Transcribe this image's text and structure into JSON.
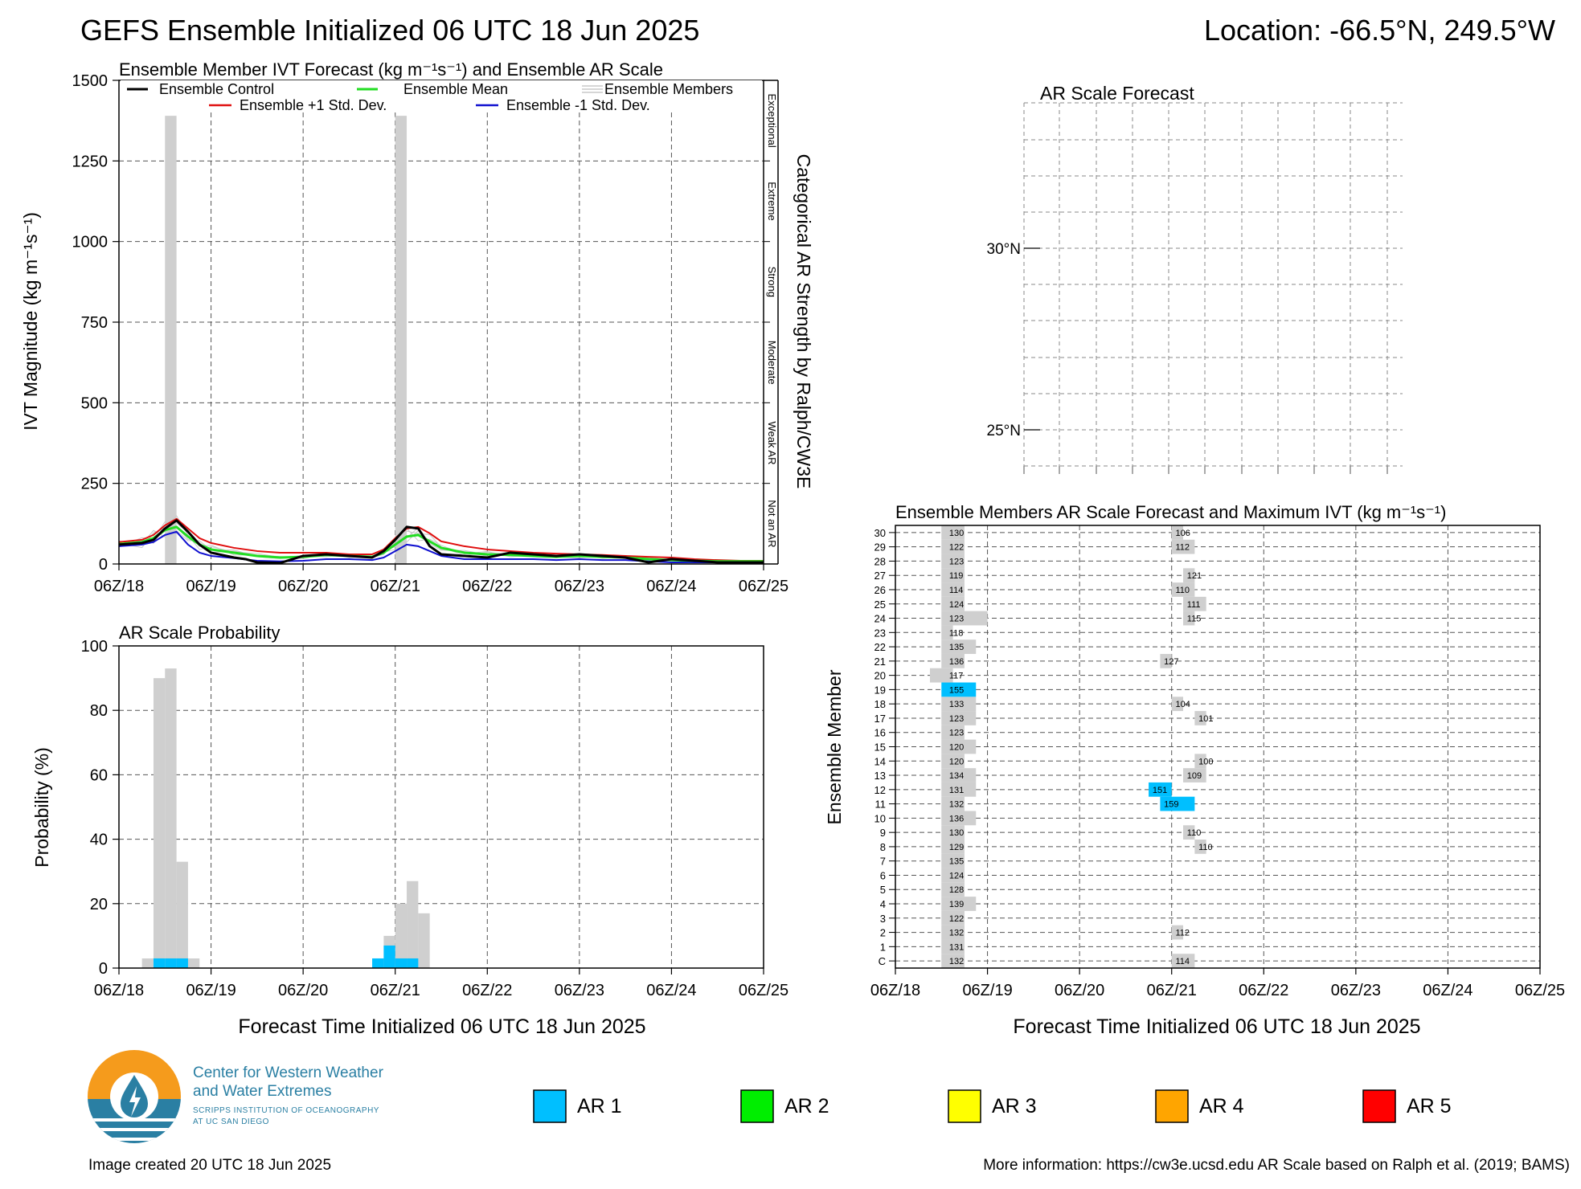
{
  "header": {
    "title": "GEFS Ensemble Initialized 06 UTC 18 Jun 2025",
    "location": "Location: -66.5°N, 249.5°W"
  },
  "ivt_panel": {
    "title": "Ensemble Member IVT Forecast (kg m⁻¹s⁻¹) and Ensemble AR Scale",
    "ylabel": "IVT Magnitude (kg m⁻¹s⁻¹)",
    "right_label": "Categorical AR Strength by Ralph/CW3E",
    "categories": [
      "Exceptional",
      "Extreme",
      "Strong",
      "Moderate",
      "Weak AR",
      "Not an AR"
    ],
    "legend": {
      "control": "Ensemble Control",
      "mean": "Ensemble Mean",
      "members": "Ensemble Members",
      "plus_sd": "Ensemble +1 Std. Dev.",
      "minus_sd": "Ensemble -1 Std. Dev."
    },
    "colors": {
      "control": "#000000",
      "mean": "#22dd22",
      "members": "#c8c8c8",
      "plus_sd": "#e01010",
      "minus_sd": "#1010d0",
      "shade": "#cfcfcf"
    }
  },
  "prob_panel": {
    "title": "AR Scale Probability",
    "ylabel": "Probability (%)",
    "xlabel": "Forecast Time Initialized 06 UTC 18 Jun 2025"
  },
  "map_panel": {
    "title": "AR Scale Forecast",
    "lat_labels": [
      "30°N",
      "25°N"
    ]
  },
  "members_panel": {
    "title": "Ensemble Members AR Scale Forecast and Maximum IVT (kg m⁻¹s⁻¹)",
    "ylabel": "Ensemble Member",
    "xlabel": "Forecast Time Initialized 06 UTC 18 Jun 2025"
  },
  "legend_scale": [
    {
      "label": "AR 1",
      "color": "#00bfff"
    },
    {
      "label": "AR 2",
      "color": "#00ee00"
    },
    {
      "label": "AR 3",
      "color": "#ffff00"
    },
    {
      "label": "AR 4",
      "color": "#ffa500"
    },
    {
      "label": "AR 5",
      "color": "#ff0000"
    }
  ],
  "logo": {
    "line1": "Center for Western Weather",
    "line2": "and Water Extremes",
    "line3": "SCRIPPS INSTITUTION OF OCEANOGRAPHY",
    "line4": "AT UC SAN DIEGO"
  },
  "footer": {
    "created": "Image created 20 UTC 18 Jun 2025",
    "info": "More information: https://cw3e.ucsd.edu AR Scale based on Ralph et al. (2019; BAMS)"
  },
  "chart_data": [
    {
      "type": "line",
      "title": "Ensemble Member IVT Forecast (kg m⁻¹s⁻¹) and Ensemble AR Scale",
      "xlabel": "",
      "ylabel": "IVT Magnitude (kg m⁻¹s⁻¹)",
      "ylim": [
        0,
        1500
      ],
      "yticks": [
        0,
        250,
        500,
        750,
        1000,
        1250,
        1500
      ],
      "xlim_hours": [
        0,
        168
      ],
      "xticks": [
        "06Z/18",
        "06Z/19",
        "06Z/20",
        "06Z/21",
        "06Z/22",
        "06Z/23",
        "06Z/24",
        "06Z/25"
      ],
      "grid": true,
      "ar_category_shading_hours": [
        [
          12,
          15
        ],
        [
          72,
          75
        ]
      ],
      "ar_category_shading_top": 1390,
      "series": [
        {
          "name": "Ensemble Control",
          "x_hours": [
            0,
            6,
            9,
            12,
            15,
            18,
            21,
            24,
            30,
            33,
            36,
            42,
            48,
            54,
            60,
            66,
            69,
            72,
            75,
            78,
            81,
            84,
            90,
            96,
            102,
            108,
            114,
            120,
            126,
            132,
            138,
            144,
            150,
            156,
            162,
            168
          ],
          "values": [
            60,
            65,
            75,
            110,
            135,
            100,
            60,
            35,
            20,
            15,
            5,
            3,
            25,
            30,
            25,
            20,
            40,
            75,
            115,
            110,
            55,
            30,
            25,
            20,
            35,
            30,
            25,
            30,
            25,
            20,
            5,
            15,
            10,
            5,
            5,
            5
          ]
        },
        {
          "name": "Ensemble Mean",
          "x_hours": [
            0,
            6,
            9,
            12,
            15,
            18,
            21,
            24,
            30,
            36,
            42,
            48,
            54,
            60,
            66,
            69,
            72,
            75,
            78,
            81,
            84,
            90,
            96,
            102,
            108,
            114,
            120,
            126,
            132,
            138,
            144,
            150,
            156,
            162,
            168
          ],
          "values": [
            62,
            68,
            80,
            105,
            115,
            85,
            60,
            45,
            35,
            25,
            20,
            22,
            28,
            25,
            22,
            35,
            60,
            85,
            90,
            70,
            50,
            35,
            30,
            28,
            25,
            22,
            25,
            22,
            20,
            15,
            12,
            10,
            8,
            8,
            8
          ]
        },
        {
          "name": "Ensemble +1 Std. Dev.",
          "x_hours": [
            0,
            6,
            9,
            12,
            15,
            18,
            21,
            24,
            30,
            36,
            42,
            48,
            54,
            60,
            66,
            69,
            72,
            75,
            78,
            81,
            84,
            90,
            96,
            102,
            108,
            114,
            120,
            126,
            132,
            138,
            144,
            150,
            156,
            162,
            168
          ],
          "values": [
            68,
            75,
            90,
            120,
            140,
            110,
            80,
            65,
            50,
            40,
            35,
            35,
            35,
            30,
            30,
            45,
            80,
            110,
            115,
            95,
            70,
            55,
            45,
            40,
            35,
            32,
            30,
            28,
            25,
            22,
            20,
            15,
            12,
            10,
            10
          ]
        },
        {
          "name": "Ensemble -1 Std. Dev.",
          "x_hours": [
            0,
            6,
            9,
            12,
            15,
            18,
            21,
            24,
            30,
            36,
            42,
            48,
            54,
            60,
            66,
            69,
            72,
            75,
            78,
            81,
            84,
            90,
            96,
            102,
            108,
            114,
            120,
            126,
            132,
            138,
            144,
            150,
            156,
            162,
            168
          ],
          "values": [
            55,
            60,
            68,
            90,
            100,
            60,
            35,
            25,
            18,
            10,
            8,
            10,
            15,
            15,
            12,
            20,
            40,
            60,
            55,
            40,
            25,
            15,
            15,
            15,
            15,
            12,
            15,
            12,
            12,
            8,
            5,
            5,
            5,
            3,
            3
          ]
        }
      ]
    },
    {
      "type": "bar",
      "title": "AR Scale Probability",
      "xlabel": "Forecast Time Initialized 06 UTC 18 Jun 2025",
      "ylabel": "Probability (%)",
      "ylim": [
        0,
        100
      ],
      "yticks": [
        0,
        20,
        40,
        60,
        80,
        100
      ],
      "xticks": [
        "06Z/18",
        "06Z/19",
        "06Z/20",
        "06Z/21",
        "06Z/22",
        "06Z/23",
        "06Z/24",
        "06Z/25"
      ],
      "grid": true,
      "series": [
        {
          "name": "AR Category",
          "x_hours": [
            6,
            9,
            12,
            15,
            18,
            21,
            66,
            69,
            72,
            75,
            78,
            81
          ],
          "values": [
            3,
            90,
            93,
            33,
            3,
            0,
            3,
            10,
            20,
            27,
            17,
            0
          ]
        },
        {
          "name": "AR 1",
          "x_hours": [
            6,
            9,
            12,
            15,
            18,
            66,
            69,
            72,
            75
          ],
          "values": [
            0,
            3,
            3,
            3,
            0,
            3,
            7,
            3,
            3
          ]
        }
      ]
    },
    {
      "type": "heatmap",
      "title": "Ensemble Members AR Scale Forecast and Maximum IVT (kg m⁻¹s⁻¹)",
      "xlabel": "Forecast Time Initialized 06 UTC 18 Jun 2025",
      "ylabel": "Ensemble Member",
      "xticks": [
        "06Z/18",
        "06Z/19",
        "06Z/20",
        "06Z/21",
        "06Z/22",
        "06Z/23",
        "06Z/24",
        "06Z/25"
      ],
      "members": [
        "C",
        "1",
        "2",
        "3",
        "4",
        "5",
        "6",
        "7",
        "8",
        "9",
        "10",
        "11",
        "12",
        "13",
        "14",
        "15",
        "16",
        "17",
        "18",
        "19",
        "20",
        "21",
        "22",
        "23",
        "24",
        "25",
        "26",
        "27",
        "28",
        "29",
        "30"
      ],
      "max_ivt_event1": [
        132,
        131,
        132,
        122,
        139,
        128,
        124,
        135,
        129,
        130,
        136,
        132,
        131,
        134,
        120,
        120,
        123,
        123,
        133,
        155,
        117,
        136,
        135,
        118,
        123,
        124,
        114,
        119,
        123,
        122,
        130
      ],
      "max_ivt_event2": [
        114,
        null,
        112,
        null,
        null,
        null,
        null,
        null,
        110,
        110,
        null,
        159,
        151,
        109,
        100,
        null,
        null,
        101,
        104,
        null,
        null,
        127,
        null,
        null,
        115,
        111,
        110,
        121,
        null,
        112,
        106
      ],
      "ar_cells": [
        {
          "member": "C",
          "start_hours": 12,
          "end_hours": 18,
          "ar": 0
        },
        {
          "member": "1",
          "start_hours": 12,
          "end_hours": 18,
          "ar": 0
        },
        {
          "member": "2",
          "start_hours": 12,
          "end_hours": 18,
          "ar": 0
        },
        {
          "member": "3",
          "start_hours": 12,
          "end_hours": 18,
          "ar": 0
        },
        {
          "member": "4",
          "start_hours": 12,
          "end_hours": 21,
          "ar": 0
        },
        {
          "member": "5",
          "start_hours": 12,
          "end_hours": 18,
          "ar": 0
        },
        {
          "member": "6",
          "start_hours": 12,
          "end_hours": 18,
          "ar": 0
        },
        {
          "member": "7",
          "start_hours": 12,
          "end_hours": 18,
          "ar": 0
        },
        {
          "member": "8",
          "start_hours": 12,
          "end_hours": 18,
          "ar": 0
        },
        {
          "member": "9",
          "start_hours": 12,
          "end_hours": 18,
          "ar": 0
        },
        {
          "member": "10",
          "start_hours": 12,
          "end_hours": 21,
          "ar": 0
        },
        {
          "member": "11",
          "start_hours": 12,
          "end_hours": 18,
          "ar": 0
        },
        {
          "member": "12",
          "start_hours": 12,
          "end_hours": 21,
          "ar": 0
        },
        {
          "member": "13",
          "start_hours": 12,
          "end_hours": 21,
          "ar": 0
        },
        {
          "member": "14",
          "start_hours": 12,
          "end_hours": 18,
          "ar": 0
        },
        {
          "member": "15",
          "start_hours": 12,
          "end_hours": 21,
          "ar": 0
        },
        {
          "member": "16",
          "start_hours": 12,
          "end_hours": 18,
          "ar": 0
        },
        {
          "member": "17",
          "start_hours": 12,
          "end_hours": 21,
          "ar": 0
        },
        {
          "member": "18",
          "start_hours": 12,
          "end_hours": 21,
          "ar": 0
        },
        {
          "member": "19",
          "start_hours": 12,
          "end_hours": 21,
          "ar": 1
        },
        {
          "member": "20",
          "start_hours": 9,
          "end_hours": 15,
          "ar": 0
        },
        {
          "member": "21",
          "start_hours": 12,
          "end_hours": 18,
          "ar": 0
        },
        {
          "member": "22",
          "start_hours": 12,
          "end_hours": 21,
          "ar": 0
        },
        {
          "member": "23",
          "start_hours": 12,
          "end_hours": 15,
          "ar": 0
        },
        {
          "member": "24",
          "start_hours": 12,
          "end_hours": 24,
          "ar": 0
        },
        {
          "member": "25",
          "start_hours": 12,
          "end_hours": 18,
          "ar": 0
        },
        {
          "member": "26",
          "start_hours": 12,
          "end_hours": 18,
          "ar": 0
        },
        {
          "member": "27",
          "start_hours": 12,
          "end_hours": 18,
          "ar": 0
        },
        {
          "member": "28",
          "start_hours": 12,
          "end_hours": 18,
          "ar": 0
        },
        {
          "member": "29",
          "start_hours": 12,
          "end_hours": 18,
          "ar": 0
        },
        {
          "member": "30",
          "start_hours": 12,
          "end_hours": 18,
          "ar": 0
        },
        {
          "member": "C",
          "start_hours": 72,
          "end_hours": 78,
          "ar": 0
        },
        {
          "member": "2",
          "start_hours": 72,
          "end_hours": 75,
          "ar": 0
        },
        {
          "member": "8",
          "start_hours": 78,
          "end_hours": 81,
          "ar": 0
        },
        {
          "member": "9",
          "start_hours": 75,
          "end_hours": 78,
          "ar": 0
        },
        {
          "member": "11",
          "start_hours": 69,
          "end_hours": 78,
          "ar": 1
        },
        {
          "member": "12",
          "start_hours": 66,
          "end_hours": 72,
          "ar": 1
        },
        {
          "member": "13",
          "start_hours": 75,
          "end_hours": 81,
          "ar": 0
        },
        {
          "member": "14",
          "start_hours": 78,
          "end_hours": 81,
          "ar": 0
        },
        {
          "member": "17",
          "start_hours": 78,
          "end_hours": 81,
          "ar": 0
        },
        {
          "member": "18",
          "start_hours": 72,
          "end_hours": 75,
          "ar": 0
        },
        {
          "member": "21",
          "start_hours": 69,
          "end_hours": 72,
          "ar": 0
        },
        {
          "member": "24",
          "start_hours": 75,
          "end_hours": 78,
          "ar": 0
        },
        {
          "member": "25",
          "start_hours": 75,
          "end_hours": 81,
          "ar": 0
        },
        {
          "member": "26",
          "start_hours": 72,
          "end_hours": 78,
          "ar": 0
        },
        {
          "member": "27",
          "start_hours": 75,
          "end_hours": 78,
          "ar": 0
        },
        {
          "member": "29",
          "start_hours": 72,
          "end_hours": 78,
          "ar": 0
        },
        {
          "member": "30",
          "start_hours": 72,
          "end_hours": 75,
          "ar": 0
        }
      ]
    }
  ]
}
